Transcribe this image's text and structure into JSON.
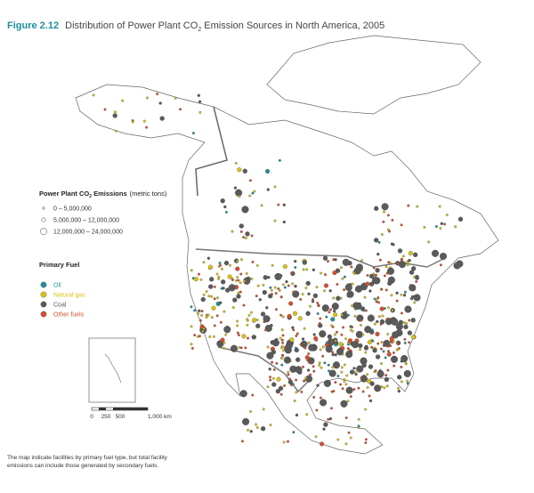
{
  "header": {
    "figure": "Figure 2.12",
    "title_parts": [
      "Distribution of Power Plant CO",
      "2",
      " Emission Sources in North America, 2005"
    ]
  },
  "legend_size": {
    "title_parts": [
      "Power Plant CO",
      "2",
      " Emissions"
    ],
    "unit": "(metric tons)",
    "items": [
      "0 – 5,000,000",
      "5,000,000 – 12,000,000",
      "12,000,000 – 24,000,000"
    ]
  },
  "legend_fuel": {
    "title": "Primary Fuel",
    "items": [
      {
        "label": "Oil",
        "color": "#1f8f9c"
      },
      {
        "label": "Natural gas",
        "color": "#d8c21a"
      },
      {
        "label": "Coal",
        "color": "#5a5a5a"
      },
      {
        "label": "Other fuels",
        "color": "#d2502e"
      }
    ]
  },
  "scale_bar": {
    "labels": [
      "0",
      "250",
      "500",
      "1,000 km"
    ]
  },
  "footnote": [
    "The map indicate facilities by primary fuel type, but total facility",
    "emissions can include those generated by secondary fuels."
  ]
}
